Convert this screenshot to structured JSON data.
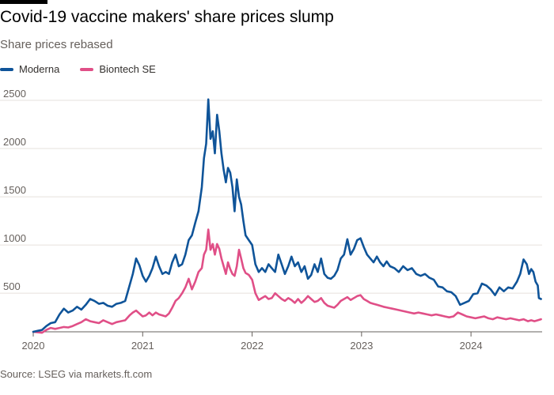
{
  "chart_data": {
    "type": "line",
    "title": "Covid-19 vaccine makers' share prices slump",
    "subtitle": "Share prices rebased",
    "source": "Source: LSEG via markets.ft.com",
    "xlabel": "",
    "ylabel": "",
    "xlim": [
      2020.0,
      2024.65
    ],
    "ylim": [
      100,
      2500
    ],
    "y_ticks": [
      2500,
      2000,
      1500,
      1000,
      500
    ],
    "y_tick_labels": [
      "2500",
      "2000",
      "1500",
      "1000",
      "500"
    ],
    "x_ticks": [
      2020,
      2021,
      2022,
      2023,
      2024
    ],
    "x_tick_labels": [
      "2020",
      "2021",
      "2022",
      "2023",
      "2024"
    ],
    "grid": true,
    "legend": "top-left",
    "series": [
      {
        "name": "Moderna",
        "color": "#0f5499",
        "points": [
          [
            2020.0,
            100
          ],
          [
            2020.04,
            110
          ],
          [
            2020.08,
            120
          ],
          [
            2020.12,
            160
          ],
          [
            2020.16,
            190
          ],
          [
            2020.2,
            200
          ],
          [
            2020.24,
            280
          ],
          [
            2020.28,
            340
          ],
          [
            2020.32,
            300
          ],
          [
            2020.36,
            320
          ],
          [
            2020.4,
            360
          ],
          [
            2020.44,
            330
          ],
          [
            2020.48,
            380
          ],
          [
            2020.52,
            440
          ],
          [
            2020.56,
            420
          ],
          [
            2020.6,
            390
          ],
          [
            2020.64,
            400
          ],
          [
            2020.68,
            370
          ],
          [
            2020.72,
            360
          ],
          [
            2020.76,
            390
          ],
          [
            2020.8,
            400
          ],
          [
            2020.84,
            420
          ],
          [
            2020.88,
            580
          ],
          [
            2020.91,
            700
          ],
          [
            2020.94,
            860
          ],
          [
            2020.97,
            790
          ],
          [
            2021.0,
            680
          ],
          [
            2021.03,
            620
          ],
          [
            2021.06,
            680
          ],
          [
            2021.09,
            760
          ],
          [
            2021.12,
            880
          ],
          [
            2021.15,
            780
          ],
          [
            2021.18,
            700
          ],
          [
            2021.21,
            720
          ],
          [
            2021.24,
            700
          ],
          [
            2021.27,
            820
          ],
          [
            2021.3,
            900
          ],
          [
            2021.33,
            780
          ],
          [
            2021.36,
            800
          ],
          [
            2021.39,
            900
          ],
          [
            2021.42,
            1050
          ],
          [
            2021.45,
            1100
          ],
          [
            2021.48,
            1230
          ],
          [
            2021.51,
            1350
          ],
          [
            2021.54,
            1600
          ],
          [
            2021.56,
            1900
          ],
          [
            2021.58,
            2050
          ],
          [
            2021.6,
            2510
          ],
          [
            2021.62,
            2100
          ],
          [
            2021.64,
            2180
          ],
          [
            2021.66,
            1950
          ],
          [
            2021.68,
            2350
          ],
          [
            2021.7,
            2180
          ],
          [
            2021.72,
            1950
          ],
          [
            2021.74,
            1780
          ],
          [
            2021.76,
            1650
          ],
          [
            2021.78,
            1800
          ],
          [
            2021.8,
            1750
          ],
          [
            2021.82,
            1600
          ],
          [
            2021.84,
            1350
          ],
          [
            2021.86,
            1680
          ],
          [
            2021.88,
            1500
          ],
          [
            2021.9,
            1420
          ],
          [
            2021.92,
            1250
          ],
          [
            2021.94,
            1100
          ],
          [
            2021.97,
            1050
          ],
          [
            2022.0,
            1000
          ],
          [
            2022.03,
            800
          ],
          [
            2022.06,
            720
          ],
          [
            2022.09,
            760
          ],
          [
            2022.12,
            720
          ],
          [
            2022.15,
            800
          ],
          [
            2022.18,
            760
          ],
          [
            2022.21,
            720
          ],
          [
            2022.24,
            900
          ],
          [
            2022.27,
            800
          ],
          [
            2022.3,
            700
          ],
          [
            2022.33,
            780
          ],
          [
            2022.36,
            880
          ],
          [
            2022.39,
            780
          ],
          [
            2022.42,
            820
          ],
          [
            2022.45,
            720
          ],
          [
            2022.48,
            780
          ],
          [
            2022.51,
            650
          ],
          [
            2022.54,
            690
          ],
          [
            2022.57,
            800
          ],
          [
            2022.6,
            720
          ],
          [
            2022.63,
            860
          ],
          [
            2022.66,
            700
          ],
          [
            2022.69,
            660
          ],
          [
            2022.72,
            650
          ],
          [
            2022.75,
            680
          ],
          [
            2022.78,
            740
          ],
          [
            2022.81,
            860
          ],
          [
            2022.84,
            900
          ],
          [
            2022.87,
            1060
          ],
          [
            2022.9,
            900
          ],
          [
            2022.93,
            960
          ],
          [
            2022.96,
            1050
          ],
          [
            2022.99,
            1070
          ],
          [
            2023.02,
            980
          ],
          [
            2023.05,
            900
          ],
          [
            2023.08,
            860
          ],
          [
            2023.11,
            820
          ],
          [
            2023.14,
            880
          ],
          [
            2023.17,
            820
          ],
          [
            2023.2,
            780
          ],
          [
            2023.23,
            830
          ],
          [
            2023.26,
            780
          ],
          [
            2023.3,
            760
          ],
          [
            2023.34,
            720
          ],
          [
            2023.38,
            780
          ],
          [
            2023.42,
            740
          ],
          [
            2023.46,
            760
          ],
          [
            2023.5,
            700
          ],
          [
            2023.54,
            680
          ],
          [
            2023.58,
            700
          ],
          [
            2023.62,
            660
          ],
          [
            2023.66,
            640
          ],
          [
            2023.7,
            570
          ],
          [
            2023.74,
            560
          ],
          [
            2023.78,
            520
          ],
          [
            2023.82,
            510
          ],
          [
            2023.86,
            470
          ],
          [
            2023.9,
            380
          ],
          [
            2023.94,
            400
          ],
          [
            2023.98,
            420
          ],
          [
            2024.02,
            490
          ],
          [
            2024.06,
            500
          ],
          [
            2024.1,
            600
          ],
          [
            2024.14,
            580
          ],
          [
            2024.18,
            540
          ],
          [
            2024.22,
            480
          ],
          [
            2024.26,
            560
          ],
          [
            2024.3,
            520
          ],
          [
            2024.34,
            560
          ],
          [
            2024.38,
            550
          ],
          [
            2024.42,
            620
          ],
          [
            2024.45,
            700
          ],
          [
            2024.48,
            850
          ],
          [
            2024.51,
            800
          ],
          [
            2024.53,
            700
          ],
          [
            2024.55,
            750
          ],
          [
            2024.57,
            720
          ],
          [
            2024.59,
            620
          ],
          [
            2024.61,
            580
          ],
          [
            2024.62,
            450
          ],
          [
            2024.64,
            440
          ]
        ]
      },
      {
        "name": "Biontech SE",
        "color": "#e04f87",
        "points": [
          [
            2020.0,
            100
          ],
          [
            2020.04,
            95
          ],
          [
            2020.08,
            90
          ],
          [
            2020.12,
            120
          ],
          [
            2020.16,
            140
          ],
          [
            2020.2,
            130
          ],
          [
            2020.24,
            140
          ],
          [
            2020.28,
            150
          ],
          [
            2020.32,
            145
          ],
          [
            2020.36,
            160
          ],
          [
            2020.4,
            180
          ],
          [
            2020.44,
            200
          ],
          [
            2020.48,
            230
          ],
          [
            2020.52,
            210
          ],
          [
            2020.56,
            200
          ],
          [
            2020.6,
            190
          ],
          [
            2020.64,
            220
          ],
          [
            2020.68,
            200
          ],
          [
            2020.72,
            180
          ],
          [
            2020.76,
            200
          ],
          [
            2020.8,
            210
          ],
          [
            2020.84,
            220
          ],
          [
            2020.88,
            270
          ],
          [
            2020.91,
            300
          ],
          [
            2020.94,
            320
          ],
          [
            2020.97,
            290
          ],
          [
            2021.0,
            260
          ],
          [
            2021.03,
            270
          ],
          [
            2021.06,
            300
          ],
          [
            2021.09,
            270
          ],
          [
            2021.12,
            300
          ],
          [
            2021.15,
            280
          ],
          [
            2021.18,
            270
          ],
          [
            2021.21,
            260
          ],
          [
            2021.24,
            290
          ],
          [
            2021.27,
            350
          ],
          [
            2021.3,
            420
          ],
          [
            2021.33,
            450
          ],
          [
            2021.36,
            500
          ],
          [
            2021.39,
            560
          ],
          [
            2021.42,
            650
          ],
          [
            2021.45,
            540
          ],
          [
            2021.48,
            620
          ],
          [
            2021.51,
            720
          ],
          [
            2021.54,
            760
          ],
          [
            2021.56,
            900
          ],
          [
            2021.58,
            950
          ],
          [
            2021.6,
            1160
          ],
          [
            2021.62,
            950
          ],
          [
            2021.64,
            1010
          ],
          [
            2021.66,
            900
          ],
          [
            2021.68,
            1010
          ],
          [
            2021.7,
            960
          ],
          [
            2021.72,
            860
          ],
          [
            2021.74,
            780
          ],
          [
            2021.76,
            700
          ],
          [
            2021.78,
            820
          ],
          [
            2021.8,
            750
          ],
          [
            2021.82,
            700
          ],
          [
            2021.84,
            680
          ],
          [
            2021.86,
            780
          ],
          [
            2021.88,
            950
          ],
          [
            2021.9,
            860
          ],
          [
            2021.92,
            760
          ],
          [
            2021.94,
            710
          ],
          [
            2021.97,
            690
          ],
          [
            2022.0,
            640
          ],
          [
            2022.03,
            500
          ],
          [
            2022.06,
            430
          ],
          [
            2022.09,
            450
          ],
          [
            2022.12,
            470
          ],
          [
            2022.15,
            440
          ],
          [
            2022.18,
            450
          ],
          [
            2022.21,
            500
          ],
          [
            2022.24,
            470
          ],
          [
            2022.27,
            440
          ],
          [
            2022.3,
            420
          ],
          [
            2022.33,
            450
          ],
          [
            2022.36,
            430
          ],
          [
            2022.39,
            400
          ],
          [
            2022.42,
            440
          ],
          [
            2022.45,
            400
          ],
          [
            2022.48,
            430
          ],
          [
            2022.51,
            470
          ],
          [
            2022.54,
            440
          ],
          [
            2022.57,
            410
          ],
          [
            2022.6,
            420
          ],
          [
            2022.63,
            450
          ],
          [
            2022.66,
            400
          ],
          [
            2022.69,
            370
          ],
          [
            2022.72,
            360
          ],
          [
            2022.75,
            350
          ],
          [
            2022.78,
            380
          ],
          [
            2022.81,
            420
          ],
          [
            2022.84,
            440
          ],
          [
            2022.87,
            460
          ],
          [
            2022.9,
            430
          ],
          [
            2022.93,
            450
          ],
          [
            2022.96,
            470
          ],
          [
            2022.99,
            480
          ],
          [
            2023.02,
            440
          ],
          [
            2023.05,
            420
          ],
          [
            2023.08,
            400
          ],
          [
            2023.11,
            390
          ],
          [
            2023.14,
            380
          ],
          [
            2023.17,
            370
          ],
          [
            2023.2,
            360
          ],
          [
            2023.24,
            350
          ],
          [
            2023.28,
            340
          ],
          [
            2023.32,
            330
          ],
          [
            2023.36,
            320
          ],
          [
            2023.4,
            310
          ],
          [
            2023.44,
            300
          ],
          [
            2023.48,
            290
          ],
          [
            2023.52,
            300
          ],
          [
            2023.56,
            290
          ],
          [
            2023.6,
            280
          ],
          [
            2023.64,
            270
          ],
          [
            2023.68,
            280
          ],
          [
            2023.72,
            270
          ],
          [
            2023.76,
            260
          ],
          [
            2023.8,
            250
          ],
          [
            2023.84,
            260
          ],
          [
            2023.88,
            300
          ],
          [
            2023.92,
            280
          ],
          [
            2023.96,
            260
          ],
          [
            2024.0,
            250
          ],
          [
            2024.04,
            240
          ],
          [
            2024.08,
            250
          ],
          [
            2024.12,
            260
          ],
          [
            2024.16,
            240
          ],
          [
            2024.2,
            230
          ],
          [
            2024.24,
            250
          ],
          [
            2024.28,
            240
          ],
          [
            2024.32,
            230
          ],
          [
            2024.36,
            240
          ],
          [
            2024.4,
            230
          ],
          [
            2024.44,
            220
          ],
          [
            2024.48,
            230
          ],
          [
            2024.52,
            210
          ],
          [
            2024.55,
            220
          ],
          [
            2024.58,
            210
          ],
          [
            2024.61,
            220
          ],
          [
            2024.64,
            230
          ]
        ]
      }
    ]
  }
}
